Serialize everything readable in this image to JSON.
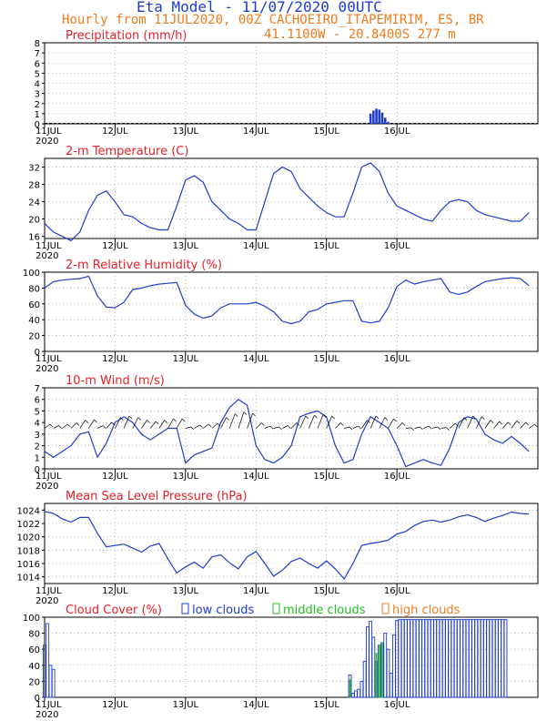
{
  "header": {
    "title": "Eta Model - 11/07/2020 00UTC",
    "subtitle": "Hourly from 11JUL2020, 00Z  CACHOEIRO_ITAPEMIRIM, ES, BR",
    "coords": "41.1100W - 20.8400S    277  m"
  },
  "colors": {
    "series": "#1e3ccd",
    "title": "#e8202a",
    "header": "#f07a1e",
    "mid": "#20c020",
    "high": "#f07a1e",
    "grid": "#888888"
  },
  "days": [
    "11JUL",
    "12JUL",
    "13JUL",
    "14JUL",
    "15JUL",
    "16JUL"
  ],
  "year_label": "2020",
  "chart_data": [
    {
      "type": "bar",
      "title": "Precipitation (mm/h)",
      "ylim": [
        0,
        8
      ],
      "yticks": [
        0,
        1,
        2,
        3,
        4,
        5,
        6,
        7,
        8
      ],
      "x": [
        110,
        111,
        112,
        113,
        114,
        115,
        116,
        117,
        118
      ],
      "values": [
        0,
        1.0,
        1.3,
        1.5,
        1.4,
        1.1,
        0.6,
        0.2,
        0
      ]
    },
    {
      "type": "line",
      "title": "2-m Temperature (C)",
      "ylim": [
        15.5,
        34
      ],
      "yticks": [
        16,
        20,
        24,
        28,
        32
      ],
      "x": [
        0,
        3,
        6,
        9,
        12,
        15,
        18,
        21,
        24,
        27,
        30,
        33,
        36,
        39,
        42,
        45,
        48,
        51,
        54,
        57,
        60,
        63,
        66,
        69,
        72,
        75,
        78,
        81,
        84,
        87,
        90,
        93,
        96,
        99,
        102,
        105,
        108,
        111,
        114,
        117,
        120,
        123,
        126,
        129,
        132,
        135,
        138,
        141,
        144,
        147,
        150,
        153,
        156,
        159,
        162,
        165
      ],
      "y": [
        19,
        17,
        16,
        15,
        17,
        22,
        25.5,
        26.5,
        24,
        21,
        20.5,
        19,
        18,
        17.5,
        17.5,
        23,
        29,
        30,
        28.5,
        24,
        22,
        20,
        19,
        17.5,
        17.5,
        24,
        30.5,
        32,
        31,
        27,
        25,
        23,
        21.5,
        20.5,
        20.5,
        26,
        32,
        33,
        31,
        26,
        23,
        22,
        21,
        20,
        19.5,
        22,
        24,
        24.5,
        24,
        22,
        21,
        20.5,
        20,
        19.5,
        19.5,
        21.5
      ]
    },
    {
      "type": "line",
      "title": "2-m Relative Humidity (%)",
      "ylim": [
        0,
        100
      ],
      "yticks": [
        0,
        20,
        40,
        60,
        80,
        100
      ],
      "x": [
        0,
        3,
        6,
        9,
        12,
        15,
        18,
        21,
        24,
        27,
        30,
        33,
        36,
        39,
        42,
        45,
        48,
        51,
        54,
        57,
        60,
        63,
        66,
        69,
        72,
        75,
        78,
        81,
        84,
        87,
        90,
        93,
        96,
        99,
        102,
        105,
        108,
        111,
        114,
        117,
        120,
        123,
        126,
        129,
        132,
        135,
        138,
        141,
        144,
        147,
        150,
        153,
        156,
        159,
        162,
        165
      ],
      "y": [
        80,
        88,
        90,
        91,
        92,
        95,
        70,
        56,
        55,
        62,
        78,
        80,
        83,
        85,
        86,
        87,
        58,
        47,
        42,
        45,
        55,
        60,
        60,
        60,
        62,
        57,
        50,
        38,
        35,
        38,
        50,
        53,
        60,
        62,
        64,
        64,
        38,
        36,
        38,
        55,
        82,
        90,
        85,
        88,
        90,
        92,
        75,
        72,
        75,
        82,
        88,
        90,
        92,
        93,
        92,
        83
      ]
    },
    {
      "type": "line",
      "title": "10-m Wind (m/s)",
      "ylim": [
        0,
        7
      ],
      "yticks": [
        0,
        1,
        2,
        3,
        4,
        5,
        6,
        7
      ],
      "x": [
        0,
        3,
        6,
        9,
        12,
        15,
        18,
        21,
        24,
        27,
        30,
        33,
        36,
        39,
        42,
        45,
        48,
        51,
        54,
        57,
        60,
        63,
        66,
        69,
        72,
        75,
        78,
        81,
        84,
        87,
        90,
        93,
        96,
        99,
        102,
        105,
        108,
        111,
        114,
        117,
        120,
        123,
        126,
        129,
        132,
        135,
        138,
        141,
        144,
        147,
        150,
        153,
        156,
        159,
        162,
        165
      ],
      "y": [
        1.5,
        1.0,
        1.5,
        2.0,
        3.0,
        3.2,
        1.0,
        2.2,
        4.0,
        4.5,
        4.0,
        3.0,
        2.5,
        3.0,
        3.5,
        3.5,
        0.5,
        1.2,
        1.5,
        1.8,
        4.0,
        5.3,
        6.0,
        5.5,
        2.0,
        0.8,
        0.5,
        1.0,
        2.0,
        4.5,
        4.8,
        5.0,
        4.5,
        2.0,
        0.5,
        0.8,
        3.0,
        4.5,
        4.0,
        3.5,
        2.0,
        0.2,
        0.5,
        0.8,
        0.5,
        0.3,
        1.8,
        4.0,
        4.5,
        4.3,
        3.0,
        2.5,
        2.2,
        2.8,
        2.2,
        1.5
      ],
      "barbs_label": "hourly wind direction barbs"
    },
    {
      "type": "line",
      "title": "Mean Sea Level Pressure (hPa)",
      "ylim": [
        1013,
        1025
      ],
      "yticks": [
        1014,
        1016,
        1018,
        1020,
        1022,
        1024
      ],
      "x": [
        0,
        3,
        6,
        9,
        12,
        15,
        18,
        21,
        24,
        27,
        30,
        33,
        36,
        39,
        42,
        45,
        48,
        51,
        54,
        57,
        60,
        63,
        66,
        69,
        72,
        75,
        78,
        81,
        84,
        87,
        90,
        93,
        96,
        99,
        102,
        105,
        108,
        111,
        114,
        117,
        120,
        123,
        126,
        129,
        132,
        135,
        138,
        141,
        144,
        147,
        150,
        153,
        156,
        159,
        162,
        165
      ],
      "y": [
        1023.8,
        1023.5,
        1022.7,
        1022.2,
        1022.9,
        1022.9,
        1020.5,
        1018.5,
        1018.7,
        1018.9,
        1018.3,
        1017.7,
        1018.6,
        1019,
        1016.7,
        1014.6,
        1015.5,
        1016.2,
        1015.3,
        1017.0,
        1017.3,
        1016.1,
        1015.2,
        1017.0,
        1017.8,
        1016.0,
        1014.1,
        1015.0,
        1016.3,
        1016.8,
        1016.0,
        1015.3,
        1016.4,
        1015.2,
        1013.7,
        1016.0,
        1018.7,
        1019.0,
        1019.2,
        1019.5,
        1020.4,
        1020.8,
        1021.7,
        1022.3,
        1022.5,
        1022.2,
        1022.5,
        1023.0,
        1023.3,
        1022.9,
        1022.3,
        1022.8,
        1023.2,
        1023.7,
        1023.5,
        1023.4
      ]
    },
    {
      "type": "bar",
      "title": "Cloud Cover (%)",
      "ylim": [
        0,
        100
      ],
      "yticks": [
        0,
        20,
        40,
        60,
        80,
        100
      ],
      "legend": {
        "low": "low clouds",
        "mid": "middle clouds",
        "high": "high clouds"
      },
      "low": {
        "x": [
          0,
          1,
          2,
          3,
          4,
          5,
          104,
          105,
          106,
          107,
          108,
          109,
          110,
          111,
          112,
          113,
          114,
          115,
          116,
          117,
          118,
          119,
          120,
          121,
          122,
          123,
          124,
          125,
          126,
          127,
          128,
          129,
          130,
          131,
          132,
          133,
          134,
          135,
          136,
          137,
          138,
          139,
          140,
          141,
          142,
          143,
          144,
          145,
          146,
          147,
          148,
          149,
          150,
          151,
          152,
          153,
          154,
          155,
          156,
          157
        ],
        "values": [
          65,
          92,
          40,
          35,
          0,
          0,
          28,
          5,
          8,
          10,
          20,
          45,
          88,
          95,
          75,
          45,
          65,
          68,
          80,
          60,
          30,
          78,
          96,
          97,
          97,
          97,
          97,
          97,
          97,
          97,
          97,
          97,
          97,
          97,
          97,
          97,
          97,
          97,
          97,
          97,
          97,
          97,
          97,
          97,
          97,
          97,
          97,
          97,
          97,
          97,
          97,
          97,
          97,
          97,
          97,
          97,
          97,
          97,
          97,
          97
        ]
      },
      "mid": {
        "x": [
          104,
          113,
          114,
          115
        ],
        "values": [
          22,
          55,
          65,
          68
        ]
      },
      "high": {
        "x": [],
        "values": []
      }
    }
  ]
}
